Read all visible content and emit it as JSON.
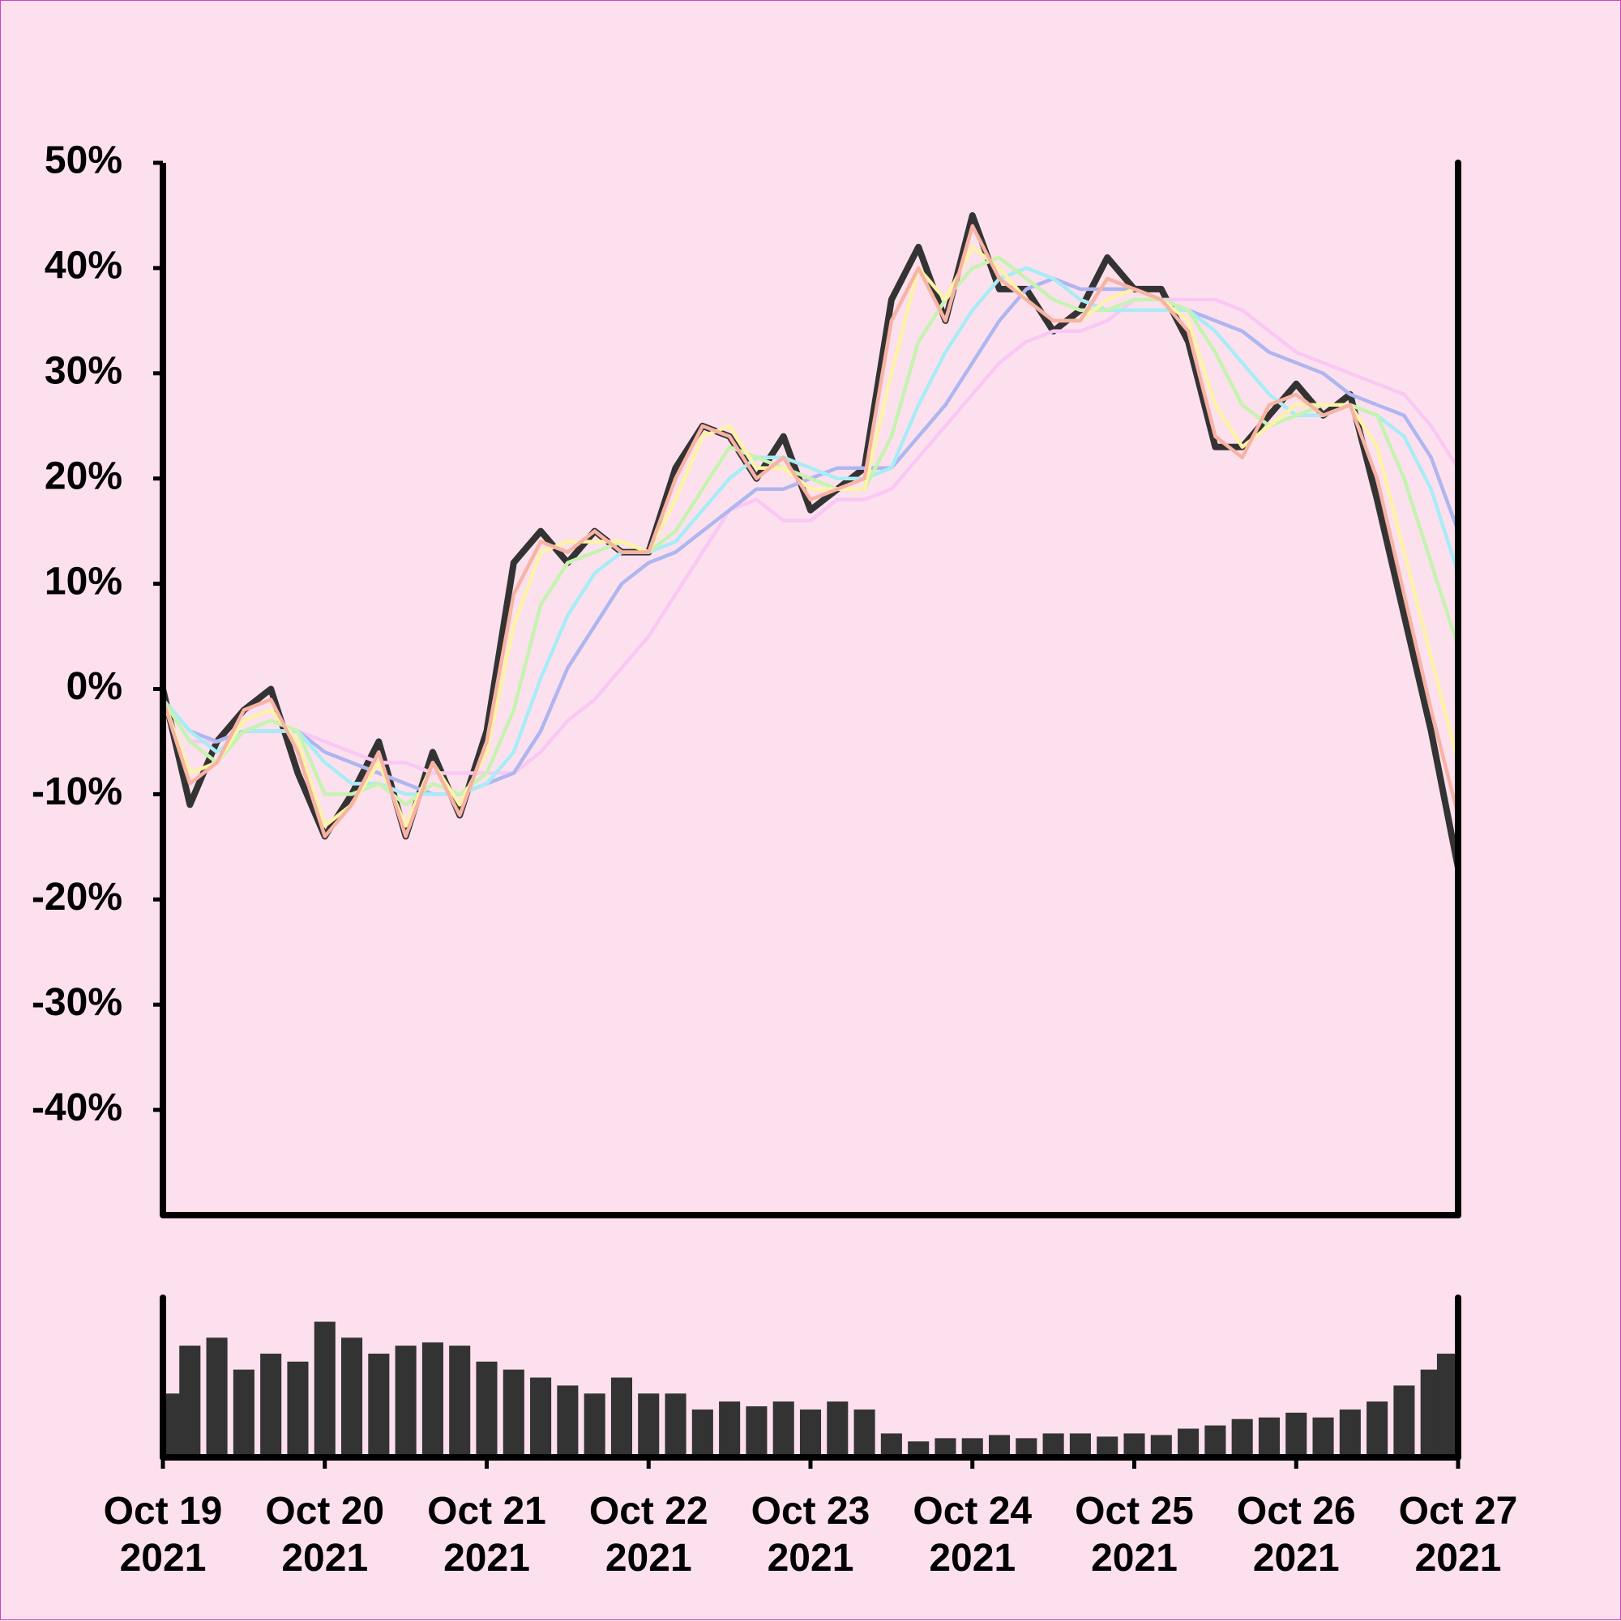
{
  "chart_data": [
    {
      "type": "line",
      "x": [
        0,
        4,
        8,
        12,
        16,
        20,
        24,
        28,
        32,
        36,
        40,
        44,
        48,
        52,
        56,
        60,
        64,
        68,
        72,
        76,
        80,
        84,
        88,
        92,
        96,
        100,
        104,
        108,
        112,
        116,
        120,
        124,
        128,
        132,
        136,
        140,
        144,
        148,
        152,
        156,
        160,
        164,
        168,
        172,
        176,
        180,
        184,
        188,
        192
      ],
      "xlim": [
        0,
        192
      ],
      "ylim": [
        -50,
        50
      ],
      "yticks": [
        {
          "value": -40,
          "label": "-40%"
        },
        {
          "value": -30,
          "label": "-30%"
        },
        {
          "value": -20,
          "label": "-20%"
        },
        {
          "value": -10,
          "label": "-10%"
        },
        {
          "value": 0,
          "label": "0%"
        },
        {
          "value": 10,
          "label": "10%"
        },
        {
          "value": 20,
          "label": "20%"
        },
        {
          "value": 30,
          "label": "30%"
        },
        {
          "value": 40,
          "label": "40%"
        },
        {
          "value": 50,
          "label": "50%"
        }
      ],
      "series": [
        {
          "color": "#333333",
          "values": [
            0,
            -11,
            -5,
            -2,
            0,
            -8,
            -14,
            -10,
            -5,
            -14,
            -6,
            -12,
            -4,
            12,
            15,
            12,
            15,
            13,
            13,
            21,
            25,
            24,
            20,
            24,
            17,
            19,
            21,
            37,
            42,
            35,
            45,
            38,
            38,
            34,
            36,
            41,
            38,
            38,
            33,
            23,
            23,
            26,
            29,
            26,
            28,
            18,
            7,
            -4,
            -17
          ]
        },
        {
          "color": "#f9c8f5",
          "values": [
            -1,
            -5,
            -5,
            -4,
            -4,
            -4,
            -5,
            -6,
            -7,
            -7,
            -8,
            -8,
            -8,
            -8,
            -6,
            -3,
            -1,
            2,
            5,
            9,
            13,
            17,
            18,
            16,
            16,
            18,
            18,
            19,
            22,
            25,
            28,
            31,
            33,
            34,
            34,
            35,
            37,
            37,
            37,
            37,
            36,
            34,
            32,
            31,
            30,
            29,
            28,
            25,
            21
          ]
        },
        {
          "color": "#aeb6f0",
          "values": [
            -1,
            -4,
            -5,
            -4,
            -4,
            -4,
            -6,
            -7,
            -8,
            -9,
            -10,
            -10,
            -9,
            -8,
            -4,
            2,
            6,
            10,
            12,
            13,
            15,
            17,
            19,
            19,
            20,
            21,
            21,
            21,
            24,
            27,
            31,
            35,
            38,
            39,
            38,
            38,
            38,
            37,
            36,
            35,
            34,
            32,
            31,
            30,
            28,
            27,
            26,
            22,
            15
          ]
        },
        {
          "color": "#a8ecf6",
          "values": [
            -1,
            -4,
            -6,
            -4,
            -4,
            -4,
            -7,
            -9,
            -9,
            -10,
            -10,
            -10,
            -9,
            -6,
            1,
            7,
            11,
            13,
            13,
            14,
            17,
            20,
            22,
            22,
            21,
            20,
            20,
            21,
            27,
            32,
            36,
            39,
            40,
            39,
            37,
            36,
            36,
            36,
            36,
            34,
            31,
            28,
            26,
            26,
            27,
            26,
            24,
            19,
            11
          ]
        },
        {
          "color": "#c6f3b0",
          "values": [
            -1,
            -5,
            -7,
            -4,
            -3,
            -4,
            -10,
            -10,
            -9,
            -11,
            -9,
            -10,
            -8,
            -2,
            8,
            12,
            13,
            14,
            13,
            15,
            19,
            23,
            22,
            21,
            20,
            19,
            19,
            24,
            33,
            37,
            40,
            41,
            39,
            37,
            36,
            36,
            37,
            37,
            36,
            32,
            27,
            25,
            26,
            27,
            27,
            26,
            20,
            12,
            4
          ]
        },
        {
          "color": "#fdf3a6",
          "values": [
            -1,
            -8,
            -7,
            -3,
            -2,
            -5,
            -13,
            -11,
            -7,
            -13,
            -7,
            -11,
            -6,
            6,
            13,
            14,
            14,
            14,
            13,
            18,
            24,
            25,
            21,
            21,
            19,
            19,
            19,
            30,
            40,
            37,
            42,
            40,
            37,
            35,
            35,
            37,
            38,
            37,
            35,
            27,
            23,
            25,
            27,
            27,
            27,
            23,
            13,
            3,
            -7
          ]
        },
        {
          "color": "#f7b3a3",
          "values": [
            -1,
            -9,
            -7,
            -2,
            -1,
            -6,
            -14,
            -11,
            -6,
            -14,
            -7,
            -12,
            -5,
            9,
            14,
            13,
            15,
            13,
            13,
            20,
            25,
            24,
            20,
            22,
            18,
            19,
            20,
            35,
            40,
            35,
            44,
            39,
            37,
            35,
            35,
            39,
            38,
            37,
            34,
            24,
            22,
            27,
            28,
            26,
            27,
            20,
            9,
            -2,
            -12
          ]
        }
      ]
    },
    {
      "type": "bar",
      "color": "#333333",
      "x": [
        0,
        4,
        8,
        12,
        16,
        20,
        24,
        28,
        32,
        36,
        40,
        44,
        48,
        52,
        56,
        60,
        64,
        68,
        72,
        76,
        80,
        84,
        88,
        92,
        96,
        100,
        104,
        108,
        112,
        116,
        120,
        124,
        128,
        132,
        136,
        140,
        144,
        148,
        152,
        156,
        160,
        164,
        168,
        172,
        176,
        180,
        184,
        188,
        192
      ],
      "values": [
        40,
        70,
        75,
        55,
        65,
        60,
        85,
        75,
        65,
        70,
        72,
        70,
        60,
        55,
        50,
        45,
        40,
        50,
        40,
        40,
        30,
        35,
        32,
        35,
        30,
        35,
        30,
        15,
        10,
        12,
        12,
        14,
        12,
        15,
        15,
        13,
        15,
        14,
        18,
        20,
        24,
        25,
        28,
        25,
        30,
        35,
        45,
        55,
        65
      ],
      "xlim": [
        0,
        192
      ],
      "ylim": [
        0,
        100
      ],
      "xticks": [
        {
          "value": 0,
          "label": "Oct 19\n2021"
        },
        {
          "value": 24,
          "label": "Oct 20\n2021"
        },
        {
          "value": 48,
          "label": "Oct 21\n2021"
        },
        {
          "value": 72,
          "label": "Oct 22\n2021"
        },
        {
          "value": 96,
          "label": "Oct 23\n2021"
        },
        {
          "value": 120,
          "label": "Oct 24\n2021"
        },
        {
          "value": 144,
          "label": "Oct 25\n2021"
        },
        {
          "value": 168,
          "label": "Oct 26\n2021"
        },
        {
          "value": 192,
          "label": "Oct 27\n2021"
        }
      ]
    }
  ]
}
